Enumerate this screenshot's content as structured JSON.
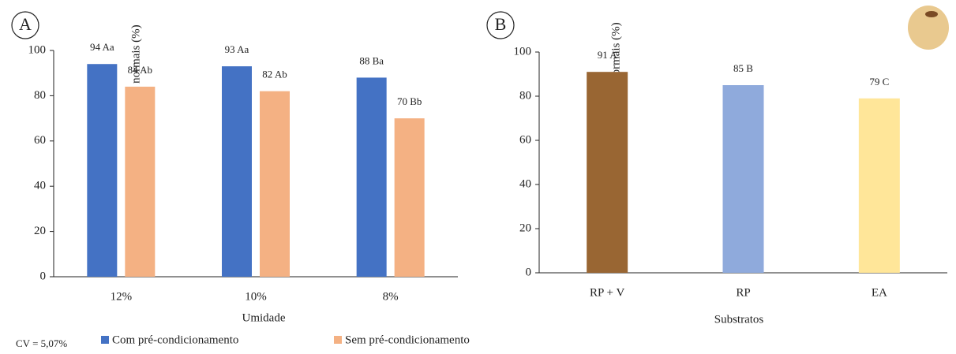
{
  "chart_data": [
    {
      "type": "bar",
      "label": "A",
      "y_label": "Plântulas normais (%)",
      "x_label": "Umidade",
      "categories": [
        "12%",
        "10%",
        "8%"
      ],
      "series": [
        {
          "name": "Com pré-condicionamento",
          "color": "#4472c4",
          "values": [
            94,
            93,
            88
          ],
          "value_labels": [
            "94 Aa",
            "93 Aa",
            "88 Ba"
          ]
        },
        {
          "name": "Sem pré-condicionamento",
          "color": "#f4b183",
          "values": [
            84,
            82,
            70
          ],
          "value_labels": [
            "84 Ab",
            "82 Ab",
            "70 Bb"
          ]
        }
      ],
      "ylim": [
        0,
        100
      ],
      "yticks": [
        0,
        20,
        40,
        60,
        80,
        100
      ],
      "note": "CV = 5,07%",
      "legend": "bottom"
    },
    {
      "type": "bar",
      "label": "B",
      "y_label": "Plântulas normais (%)",
      "x_label": "Substratos",
      "categories": [
        "RP + V",
        "RP",
        "EA"
      ],
      "values": [
        91,
        85,
        79
      ],
      "value_labels": [
        "91 A",
        "85 B",
        "79 C"
      ],
      "colors": [
        "#996633",
        "#8faadc",
        "#ffe699"
      ],
      "ylim": [
        0,
        100
      ],
      "yticks": [
        0,
        20,
        40,
        60,
        80,
        100
      ]
    }
  ]
}
